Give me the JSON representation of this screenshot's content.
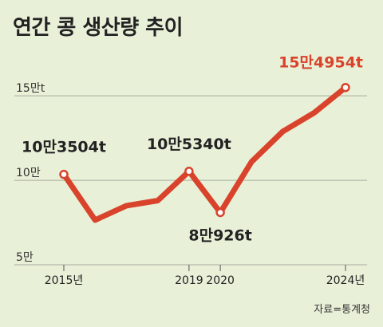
{
  "chart_data": {
    "type": "line",
    "title": "연간 콩 생산량 추이",
    "source": "자료=통계청",
    "x": [
      2015,
      2016,
      2017,
      2018,
      2019,
      2020,
      2021,
      2022,
      2023,
      2024
    ],
    "series": [
      {
        "values": [
          103504,
          76500,
          85000,
          88000,
          105340,
          80926,
          111000,
          129000,
          140000,
          154954
        ]
      }
    ],
    "ylim": [
      50000,
      160000
    ],
    "yticks": [
      {
        "value": 150000,
        "label": "15만t"
      },
      {
        "value": 100000,
        "label": "10만"
      },
      {
        "value": 50000,
        "label": "5만"
      }
    ],
    "xticks": [
      {
        "value": 2015,
        "label": "2015년"
      },
      {
        "value": 2019,
        "label": "2019"
      },
      {
        "value": 2020,
        "label": "2020"
      },
      {
        "value": 2024,
        "label": "2024년"
      }
    ],
    "annotations": [
      {
        "x": 2015,
        "y": 103504,
        "label": "10만3504t",
        "color": "#222222"
      },
      {
        "x": 2019,
        "y": 105340,
        "label": "10만5340t",
        "color": "#222222"
      },
      {
        "x": 2020,
        "y": 80926,
        "label": "8만926t",
        "color": "#222222"
      },
      {
        "x": 2024,
        "y": 154954,
        "label": "15만4954t",
        "color": "#d9432b"
      }
    ],
    "colors": {
      "line": "#d9432b",
      "grid": "#a9ad9f",
      "background": "#e9f0d8"
    }
  }
}
